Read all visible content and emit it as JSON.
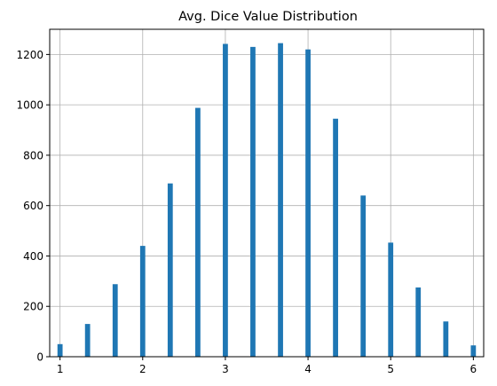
{
  "chart_data": {
    "type": "bar",
    "title": "Avg. Dice Value Distribution",
    "xlabel": "",
    "ylabel": "",
    "x": [
      1.0,
      1.333,
      1.667,
      2.0,
      2.333,
      2.667,
      3.0,
      3.333,
      3.667,
      4.0,
      4.333,
      4.667,
      5.0,
      5.333,
      5.667,
      6.0
    ],
    "values": [
      50,
      130,
      288,
      440,
      688,
      988,
      1242,
      1230,
      1245,
      1220,
      945,
      640,
      453,
      275,
      140,
      45
    ],
    "xlim": [
      0.875,
      6.125
    ],
    "ylim": [
      0,
      1300
    ],
    "xticks": [
      1,
      2,
      3,
      4,
      5,
      6
    ],
    "yticks": [
      0,
      200,
      400,
      600,
      800,
      1000,
      1200
    ],
    "grid": true,
    "color": "#1f77b4"
  }
}
